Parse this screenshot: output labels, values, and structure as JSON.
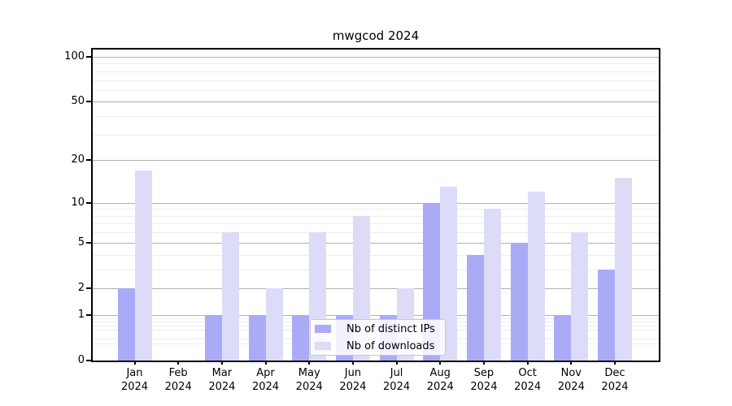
{
  "title": "mwgcod 2024",
  "legend": {
    "items": [
      {
        "label": "Nb of distinct IPs",
        "color": "#aaaaf7"
      },
      {
        "label": "Nb of downloads",
        "color": "#dcdcf9"
      }
    ]
  },
  "colors": {
    "ips_bar": "#aaaaf7",
    "downloads_bar": "#dcdcf9",
    "grid_major": "#b0b0b0",
    "grid_minor": "#ededed",
    "axis": "#000000",
    "background": "#ffffff"
  },
  "chart_data": {
    "type": "bar",
    "title": "mwgcod 2024",
    "categories": [
      "Jan",
      "Feb",
      "Mar",
      "Apr",
      "May",
      "Jun",
      "Jul",
      "Aug",
      "Sep",
      "Oct",
      "Nov",
      "Dec"
    ],
    "year_label": "2024",
    "series": [
      {
        "name": "Nb of distinct IPs",
        "values": [
          2,
          0,
          1,
          1,
          1,
          1,
          1,
          10,
          4,
          5,
          1,
          3
        ]
      },
      {
        "name": "Nb of downloads",
        "values": [
          17,
          0,
          6,
          2,
          6,
          8,
          2,
          13,
          9,
          12,
          6,
          15
        ]
      }
    ],
    "yscale": "log10(value+1)",
    "y_ticks": [
      0,
      1,
      2,
      5,
      10,
      20,
      50,
      100
    ],
    "y_minor_ticks": [
      0.3,
      0.4,
      0.6,
      0.7,
      0.8,
      0.9,
      3,
      4,
      6,
      7,
      8,
      9,
      30,
      40,
      60,
      70,
      80,
      90
    ],
    "ylim": [
      0,
      112
    ],
    "grid": true,
    "legend_position": "lower center"
  }
}
